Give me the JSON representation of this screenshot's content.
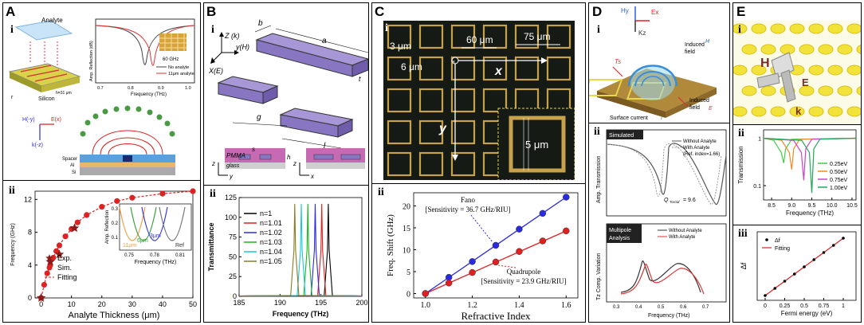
{
  "panels": {
    "A": {
      "letter": "A",
      "sub_i": "i",
      "sub_ii": "ii",
      "top_labels": {
        "analyte": "Analyte",
        "silicon": "Silicon",
        "h": "h=31 μm",
        "ylabel": "Amp. Reflection (dB)",
        "xlabel": "Frequency (THz)",
        "shift": "60 GHz",
        "legend_no": "No analyte",
        "legend_with": "11μm analyte",
        "ticks_x": [
          "0.7",
          "0.8",
          "0.9",
          "1.0"
        ],
        "field_h": "H(-y)",
        "field_e": "E(x)",
        "field_k": "k(-z)",
        "spacer": "Spacer",
        "al": "Al",
        "si": "Si"
      },
      "inset": {
        "ylabel": "Amp. Reflection",
        "xlabel": "Frequency (THz)",
        "y_ticks": [
          "0.3",
          "0.2",
          "0.1"
        ],
        "x_ticks": [
          "0.75",
          "0.78",
          "0.81"
        ],
        "labels": [
          "11μm",
          "6μm",
          "3μm",
          "Ref"
        ]
      }
    },
    "B": {
      "letter": "B",
      "sub_i": "i",
      "sub_ii": "ii",
      "labels": {
        "z": "Z (k)",
        "y": "y(H)",
        "x": "X(E)",
        "a": "a",
        "b": "b",
        "t": "t",
        "g": "g",
        "l": "l",
        "s": "s",
        "h": "h",
        "pmma": "PMMA",
        "glass": "glass",
        "z2": "z",
        "y2": "y",
        "z3": "z",
        "x2": "x"
      }
    },
    "C": {
      "letter": "C",
      "sub_i": "i",
      "sub_ii": "ii",
      "micro_labels": {
        "d3": "3 μm",
        "d60": "60 μm",
        "d75": "75 μm",
        "d6": "6 μm",
        "x": "x",
        "y": "y",
        "d5": "5 μm"
      }
    },
    "D": {
      "letter": "D",
      "sub_i": "i",
      "sub_ii": "ii",
      "top_labels": {
        "hy": "Hy",
        "ex": "Ex",
        "kz": "Kz",
        "ts": "Ts",
        "induced_h": "Induced",
        "field": "field",
        "induced_e": "Induced",
        "field_e": "field",
        "surface": "Surface current"
      },
      "sim": {
        "tag": "Simulated",
        "legend_without": "Without Analyte",
        "legend_with": "With Analyte",
        "ref_index": "(Ref. index=1.66)",
        "q": "Q",
        "q_sub": "Toroid",
        "q_val": "= 9.6",
        "ylabel": "Amp. Transmission"
      },
      "multi": {
        "tag": "Multipole",
        "tag2": "Analysis",
        "legend_without": "Without Analyte",
        "legend_with": "With Analyte",
        "ylabel": "Tz Comp. Variation",
        "xlabel": "Frequency (THz)",
        "x_ticks": [
          "0.3",
          "0.4",
          "0.5",
          "0.6",
          "0.7"
        ]
      }
    },
    "E": {
      "letter": "E",
      "sub_i": "i",
      "sub_ii": "ii",
      "sub_iii": "iii",
      "field_labels": {
        "h": "H",
        "e": "E",
        "k": "k"
      }
    }
  },
  "chart_data": [
    {
      "id": "A-ii",
      "type": "scatter",
      "xlabel": "Analyte Thickness (μm)",
      "ylabel": "Frequency (GHz)",
      "xlim": [
        -2,
        50
      ],
      "ylim": [
        0,
        13
      ],
      "x_ticks": [
        0,
        10,
        20,
        30,
        40,
        50
      ],
      "y_ticks": [
        0,
        4,
        8,
        12
      ],
      "series": [
        {
          "name": "Exp.",
          "marker": "star",
          "color": "#8b1a1a",
          "x": [
            0,
            3,
            6,
            11
          ],
          "y": [
            0,
            4.4,
            5.3,
            8.5
          ]
        },
        {
          "name": "Sim.",
          "marker": "circle",
          "color": "#dd2222",
          "x": [
            0,
            1,
            2,
            3,
            4,
            5,
            6,
            8,
            10,
            12,
            15,
            20,
            25,
            30,
            40,
            50
          ],
          "y": [
            0,
            1.6,
            3.0,
            4.0,
            4.9,
            5.7,
            6.4,
            7.5,
            8.4,
            9.2,
            10.1,
            11.1,
            11.8,
            12.2,
            12.7,
            13.0
          ]
        },
        {
          "name": "Fitting",
          "style": "dashed",
          "color": "#dd2222"
        }
      ],
      "legend": [
        "Exp.",
        "Sim.",
        "Fitting"
      ]
    },
    {
      "id": "B-ii",
      "type": "line",
      "xlabel": "Frequency (THz)",
      "ylabel": "Transmittance",
      "xlim": [
        185,
        200
      ],
      "ylim": [
        0,
        125
      ],
      "x_ticks": [
        185,
        190,
        195,
        200
      ],
      "y_ticks": [
        0,
        25,
        50,
        75,
        100,
        125
      ],
      "series": [
        {
          "name": "n=1",
          "color": "#000000",
          "peak": 195.9,
          "value": 117
        },
        {
          "name": "n=1.01",
          "color": "#e02020",
          "peak": 195.1,
          "value": 117
        },
        {
          "name": "n=1.02",
          "color": "#2a2ae0",
          "peak": 194.3,
          "value": 117
        },
        {
          "name": "n=1.03",
          "color": "#18b818",
          "peak": 193.4,
          "value": 117
        },
        {
          "name": "n=1.04",
          "color": "#18c8d8",
          "peak": 192.6,
          "value": 117
        },
        {
          "name": "n=1.05",
          "color": "#8a7a22",
          "peak": 191.8,
          "value": 117
        }
      ]
    },
    {
      "id": "C-ii",
      "type": "line",
      "xlabel": "Refractive Index",
      "ylabel": "Freq. Shift (GHz)",
      "xlim": [
        0.95,
        1.65
      ],
      "ylim": [
        -1,
        23
      ],
      "x_ticks": [
        1.0,
        1.2,
        1.4,
        1.6
      ],
      "y_ticks": [
        0,
        5,
        10,
        15,
        20
      ],
      "series": [
        {
          "name": "Fano",
          "annotation": "[Sensitivity = 36.7 GHz/RIU]",
          "color": "#2a2ae0",
          "x": [
            1.0,
            1.1,
            1.2,
            1.3,
            1.4,
            1.5,
            1.6
          ],
          "y": [
            0,
            3.7,
            7.3,
            11.0,
            14.7,
            18.3,
            22.0
          ]
        },
        {
          "name": "Quadrupole",
          "annotation": "[Sensitivity = 23.9 GHz/RIU]",
          "color": "#e02020",
          "x": [
            1.0,
            1.1,
            1.2,
            1.3,
            1.4,
            1.5,
            1.6
          ],
          "y": [
            0,
            2.4,
            4.8,
            7.2,
            9.6,
            12.0,
            14.3
          ]
        }
      ]
    },
    {
      "id": "E-ii",
      "type": "line",
      "xlabel": "Frequency (THz)",
      "ylabel": "Transmission",
      "xlim": [
        8.3,
        10.6
      ],
      "x_ticks": [
        8.5,
        9.0,
        9.5,
        10.0,
        10.5
      ],
      "y_ticks": [
        0.1,
        1
      ],
      "series": [
        {
          "name": "0.25eV",
          "color": "#44cc44",
          "dip": 8.8,
          "value": 0.3
        },
        {
          "name": "0.50eV",
          "color": "#f08a20",
          "dip": 9.0,
          "value": 0.22
        },
        {
          "name": "0.75eV",
          "color": "#cc44cc",
          "dip": 9.3,
          "value": 0.13
        },
        {
          "name": "1.00eV",
          "color": "#22aa55",
          "dip": 9.5,
          "value": 0.07
        }
      ]
    },
    {
      "id": "E-iii",
      "type": "line",
      "xlabel": "Fermi energy (eV)",
      "ylabel": "Δf",
      "x_ticks": [
        "0",
        "0.25",
        "0.5",
        "0.75",
        "1"
      ],
      "series": [
        {
          "name": "Δf",
          "marker": "dot",
          "color": "#000000",
          "x": [
            0.0,
            0.125,
            0.25,
            0.375,
            0.5,
            0.625,
            0.75,
            0.875,
            1.0
          ],
          "y": [
            0.0,
            0.125,
            0.25,
            0.375,
            0.5,
            0.625,
            0.75,
            0.875,
            1.0
          ]
        },
        {
          "name": "Fitting",
          "color": "#e02020"
        }
      ]
    }
  ]
}
